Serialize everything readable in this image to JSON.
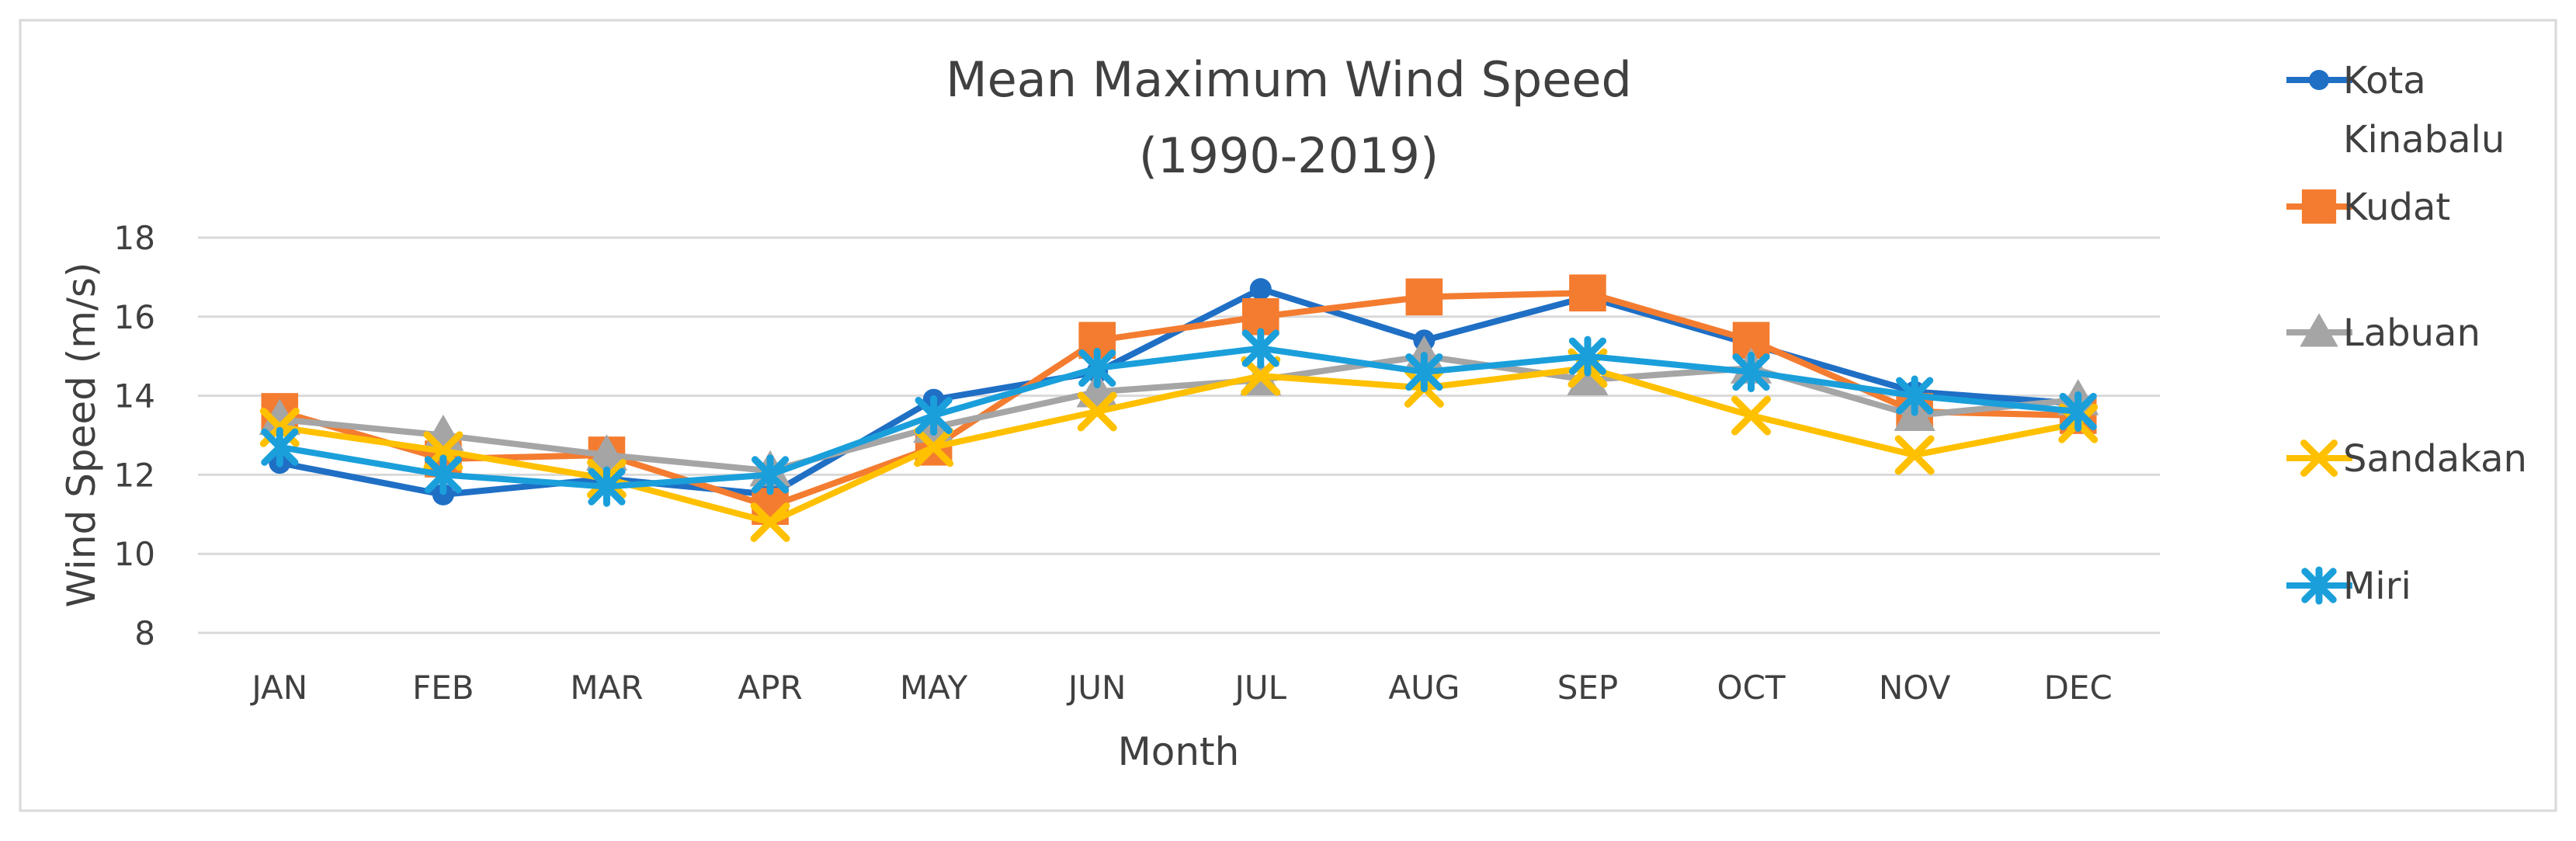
{
  "chart_data": {
    "type": "line",
    "title": "Mean Maximum Wind Speed (1990-2019)",
    "title_lines": [
      "Mean Maximum Wind Speed",
      "(1990-2019)"
    ],
    "xlabel": "Month",
    "ylabel": "Wind Speed (m/s)",
    "ylim": [
      8,
      18
    ],
    "yticks": [
      8,
      10,
      12,
      14,
      16,
      18
    ],
    "grid": true,
    "legend_position": "right",
    "categories": [
      "JAN",
      "FEB",
      "MAR",
      "APR",
      "MAY",
      "JUN",
      "JUL",
      "AUG",
      "SEP",
      "OCT",
      "NOV",
      "DEC"
    ],
    "series": [
      {
        "name": "Kota Kinabalu",
        "legend_lines": [
          "Kota",
          "Kinabalu"
        ],
        "color": "#1f6fc5",
        "marker": "circle",
        "values": [
          12.3,
          11.5,
          11.9,
          11.5,
          13.9,
          14.6,
          16.7,
          15.4,
          16.5,
          15.3,
          14.1,
          13.8
        ]
      },
      {
        "name": "Kudat",
        "legend_lines": [
          "Kudat"
        ],
        "color": "#f47c30",
        "marker": "square",
        "values": [
          13.6,
          12.4,
          12.5,
          11.2,
          12.7,
          15.4,
          16.0,
          16.5,
          16.6,
          15.4,
          13.6,
          13.5
        ]
      },
      {
        "name": "Labuan",
        "legend_lines": [
          "Labuan"
        ],
        "color": "#a5a5a5",
        "marker": "triangle",
        "values": [
          13.4,
          13.0,
          12.5,
          12.1,
          13.2,
          14.1,
          14.4,
          15.0,
          14.4,
          14.7,
          13.5,
          13.9
        ]
      },
      {
        "name": "Sandakan",
        "legend_lines": [
          "Sandakan"
        ],
        "color": "#ffc000",
        "marker": "x",
        "values": [
          13.2,
          12.6,
          11.9,
          10.8,
          12.7,
          13.6,
          14.5,
          14.2,
          14.7,
          13.5,
          12.5,
          13.3
        ]
      },
      {
        "name": "Miri",
        "legend_lines": [
          "Miri"
        ],
        "color": "#1a9fdb",
        "marker": "star",
        "values": [
          12.7,
          12.0,
          11.7,
          12.0,
          13.5,
          14.7,
          15.2,
          14.6,
          15.0,
          14.6,
          14.0,
          13.6
        ]
      }
    ]
  }
}
